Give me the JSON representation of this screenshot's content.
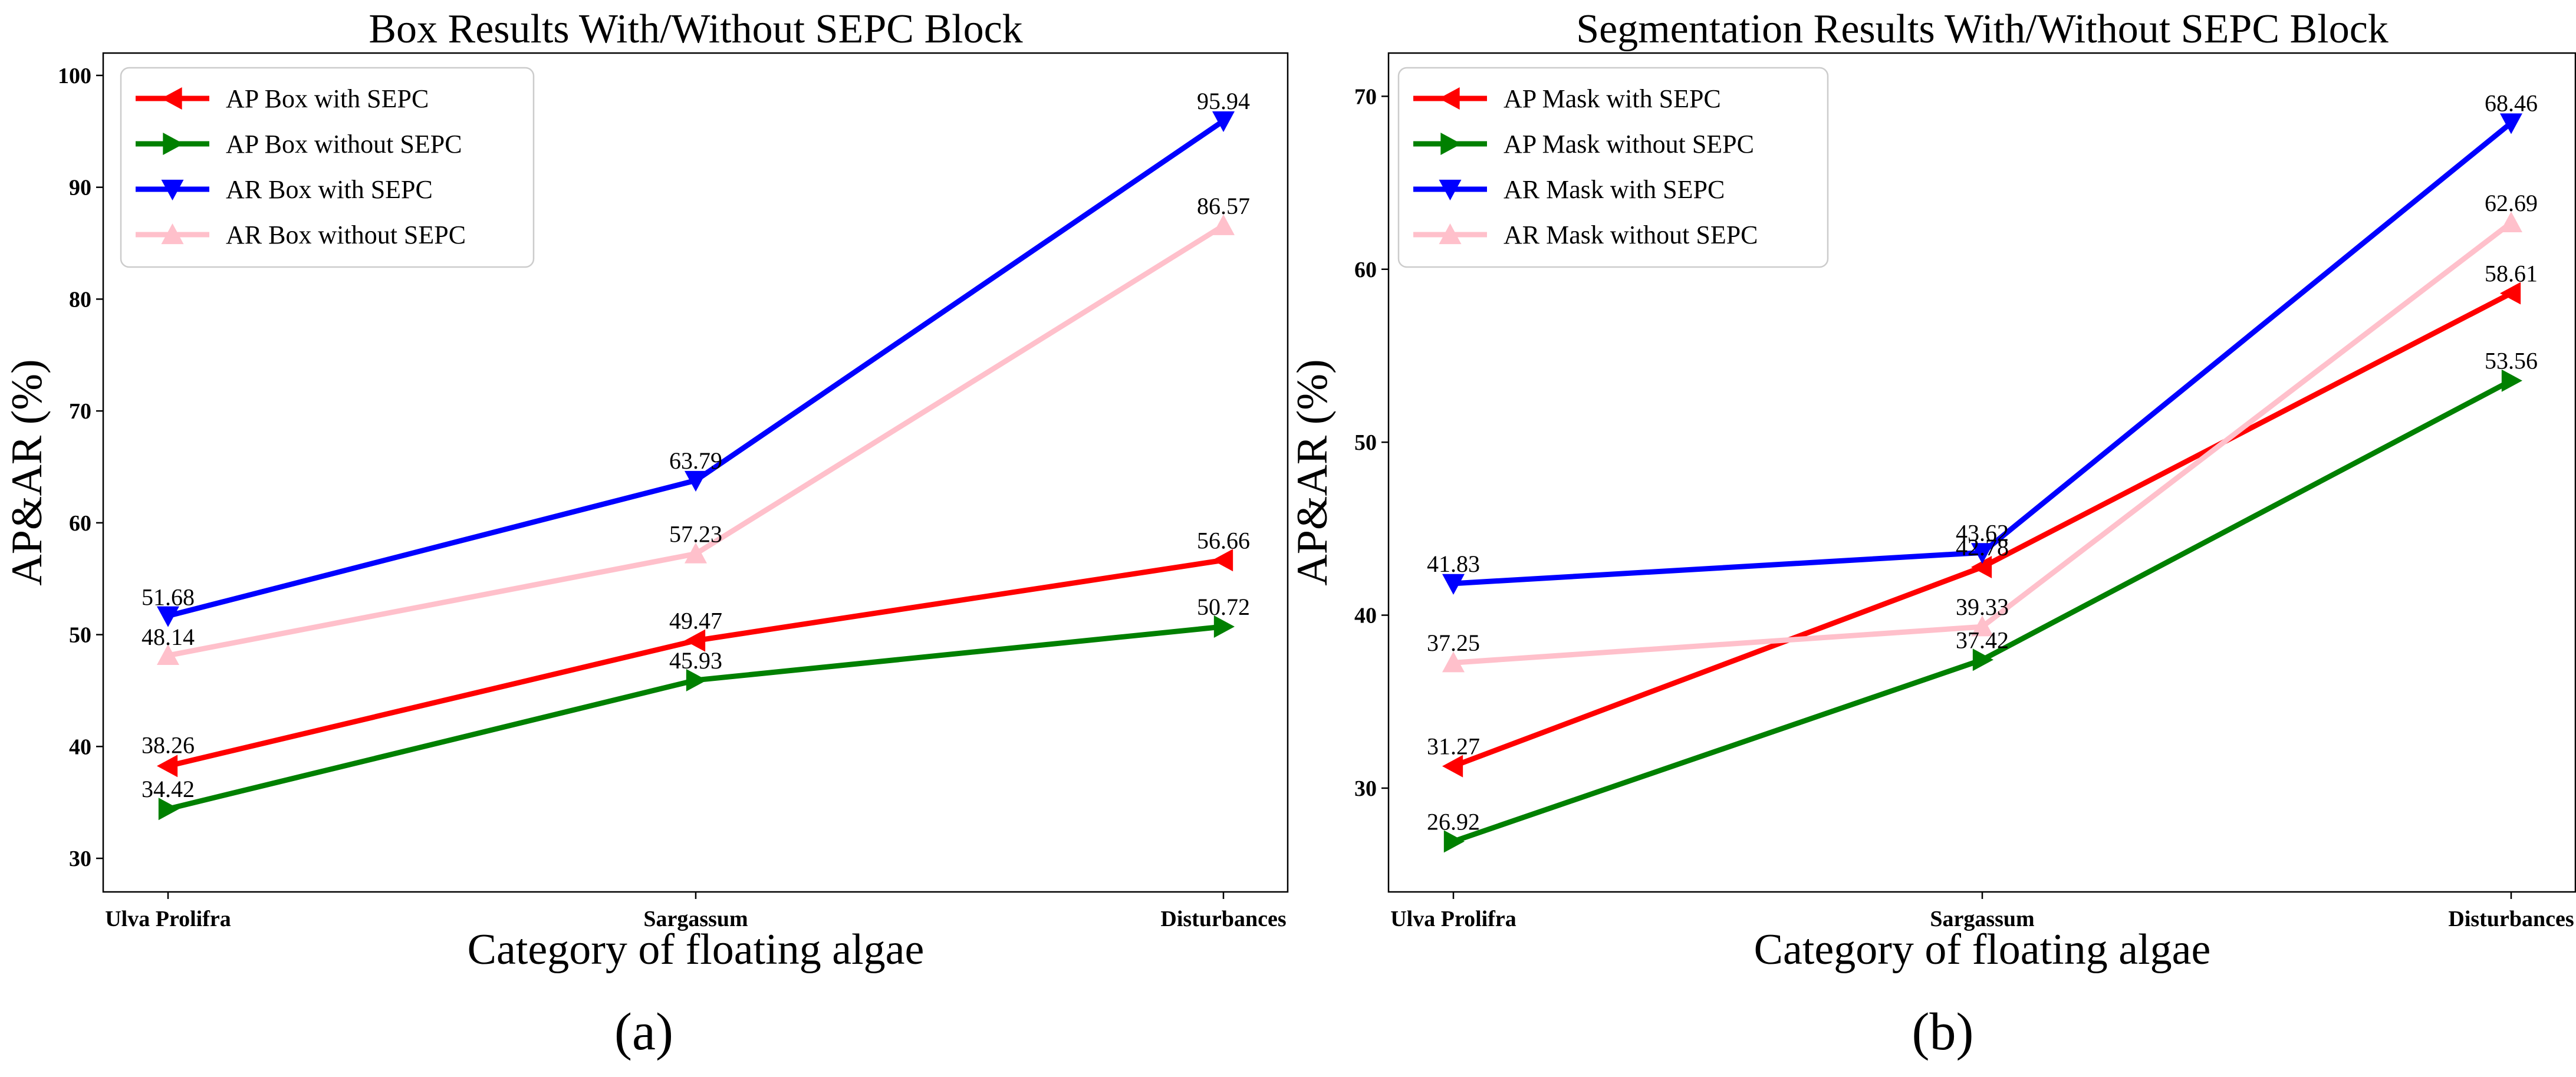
{
  "chart_data": [
    {
      "type": "line",
      "panel_label": "(a)",
      "title": "Box Results With/Without SEPC Block",
      "xlabel": "Category of floating algae",
      "ylabel": "AP&AR (%)",
      "categories": [
        "Ulva Prolifra",
        "Sargassum",
        "Disturbances"
      ],
      "ylim": [
        27,
        102
      ],
      "yticks": [
        30,
        40,
        50,
        60,
        70,
        80,
        90,
        100
      ],
      "legend_position": "top-left",
      "grid": false,
      "series": [
        {
          "name": "AP Box with SEPC",
          "color": "#ff0000",
          "marker": "triangle-left",
          "values": [
            38.26,
            49.47,
            56.66
          ],
          "labels": [
            "38.26",
            "49.47",
            "56.66"
          ]
        },
        {
          "name": "AP Box without SEPC",
          "color": "#008000",
          "marker": "triangle-right",
          "values": [
            34.42,
            45.93,
            50.72
          ],
          "labels": [
            "34.42",
            "45.93",
            "50.72"
          ]
        },
        {
          "name": "AR Box with SEPC",
          "color": "#0000ff",
          "marker": "triangle-down",
          "values": [
            51.68,
            63.79,
            95.94
          ],
          "labels": [
            "51.68",
            "63.79",
            "95.94"
          ]
        },
        {
          "name": "AR Box without SEPC",
          "color": "#ffc0cb",
          "marker": "triangle-up",
          "values": [
            48.14,
            57.23,
            86.57
          ],
          "labels": [
            "48.14",
            "57.23",
            "86.57"
          ]
        }
      ]
    },
    {
      "type": "line",
      "panel_label": "(b)",
      "title": "Segmentation Results With/Without SEPC Block",
      "xlabel": "Category of floating algae",
      "ylabel": "AP&AR (%)",
      "categories": [
        "Ulva Prolifra",
        "Sargassum",
        "Disturbances"
      ],
      "ylim": [
        24,
        72.5
      ],
      "yticks": [
        30,
        40,
        50,
        60,
        70
      ],
      "legend_position": "top-left",
      "grid": false,
      "series": [
        {
          "name": "AP Mask with SEPC",
          "color": "#ff0000",
          "marker": "triangle-left",
          "values": [
            31.27,
            42.78,
            58.61
          ],
          "labels": [
            "31.27",
            "42.78",
            "58.61"
          ]
        },
        {
          "name": "AP Mask without SEPC",
          "color": "#008000",
          "marker": "triangle-right",
          "values": [
            26.92,
            37.42,
            53.56
          ],
          "labels": [
            "26.92",
            "37.42",
            "53.56"
          ]
        },
        {
          "name": "AR Mask with SEPC",
          "color": "#0000ff",
          "marker": "triangle-down",
          "values": [
            41.83,
            43.62,
            68.46
          ],
          "labels": [
            "41.83",
            "43.62",
            "68.46"
          ]
        },
        {
          "name": "AR Mask without SEPC",
          "color": "#ffc0cb",
          "marker": "triangle-up",
          "values": [
            37.25,
            39.33,
            62.69
          ],
          "labels": [
            "37.25",
            "39.33",
            "62.69"
          ]
        }
      ]
    }
  ]
}
